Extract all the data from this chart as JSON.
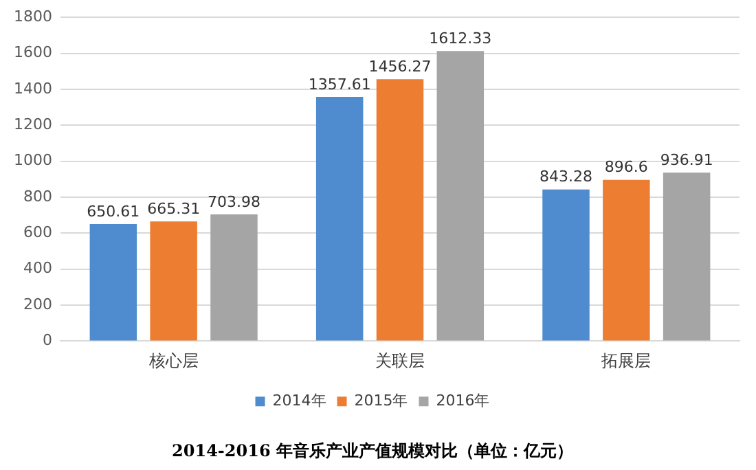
{
  "chart_data": {
    "type": "bar",
    "title": "2014-2016 年音乐产业产值规模对比（单位：亿元）",
    "categories": [
      "核心层",
      "关联层",
      "拓展层"
    ],
    "series": [
      {
        "name": "2014年",
        "color": "#4e8ccf",
        "values": [
          650.61,
          1357.61,
          843.28
        ]
      },
      {
        "name": "2015年",
        "color": "#ed7d31",
        "values": [
          665.31,
          1456.27,
          896.6
        ]
      },
      {
        "name": "2016年",
        "color": "#a5a5a5",
        "values": [
          703.98,
          1612.33,
          936.91
        ]
      }
    ],
    "ylim": [
      0,
      1800
    ],
    "yticks": [
      0,
      200,
      400,
      600,
      800,
      1000,
      1200,
      1400,
      1600,
      1800
    ],
    "grid": "y",
    "legend": "bottom",
    "data_labels": true
  }
}
